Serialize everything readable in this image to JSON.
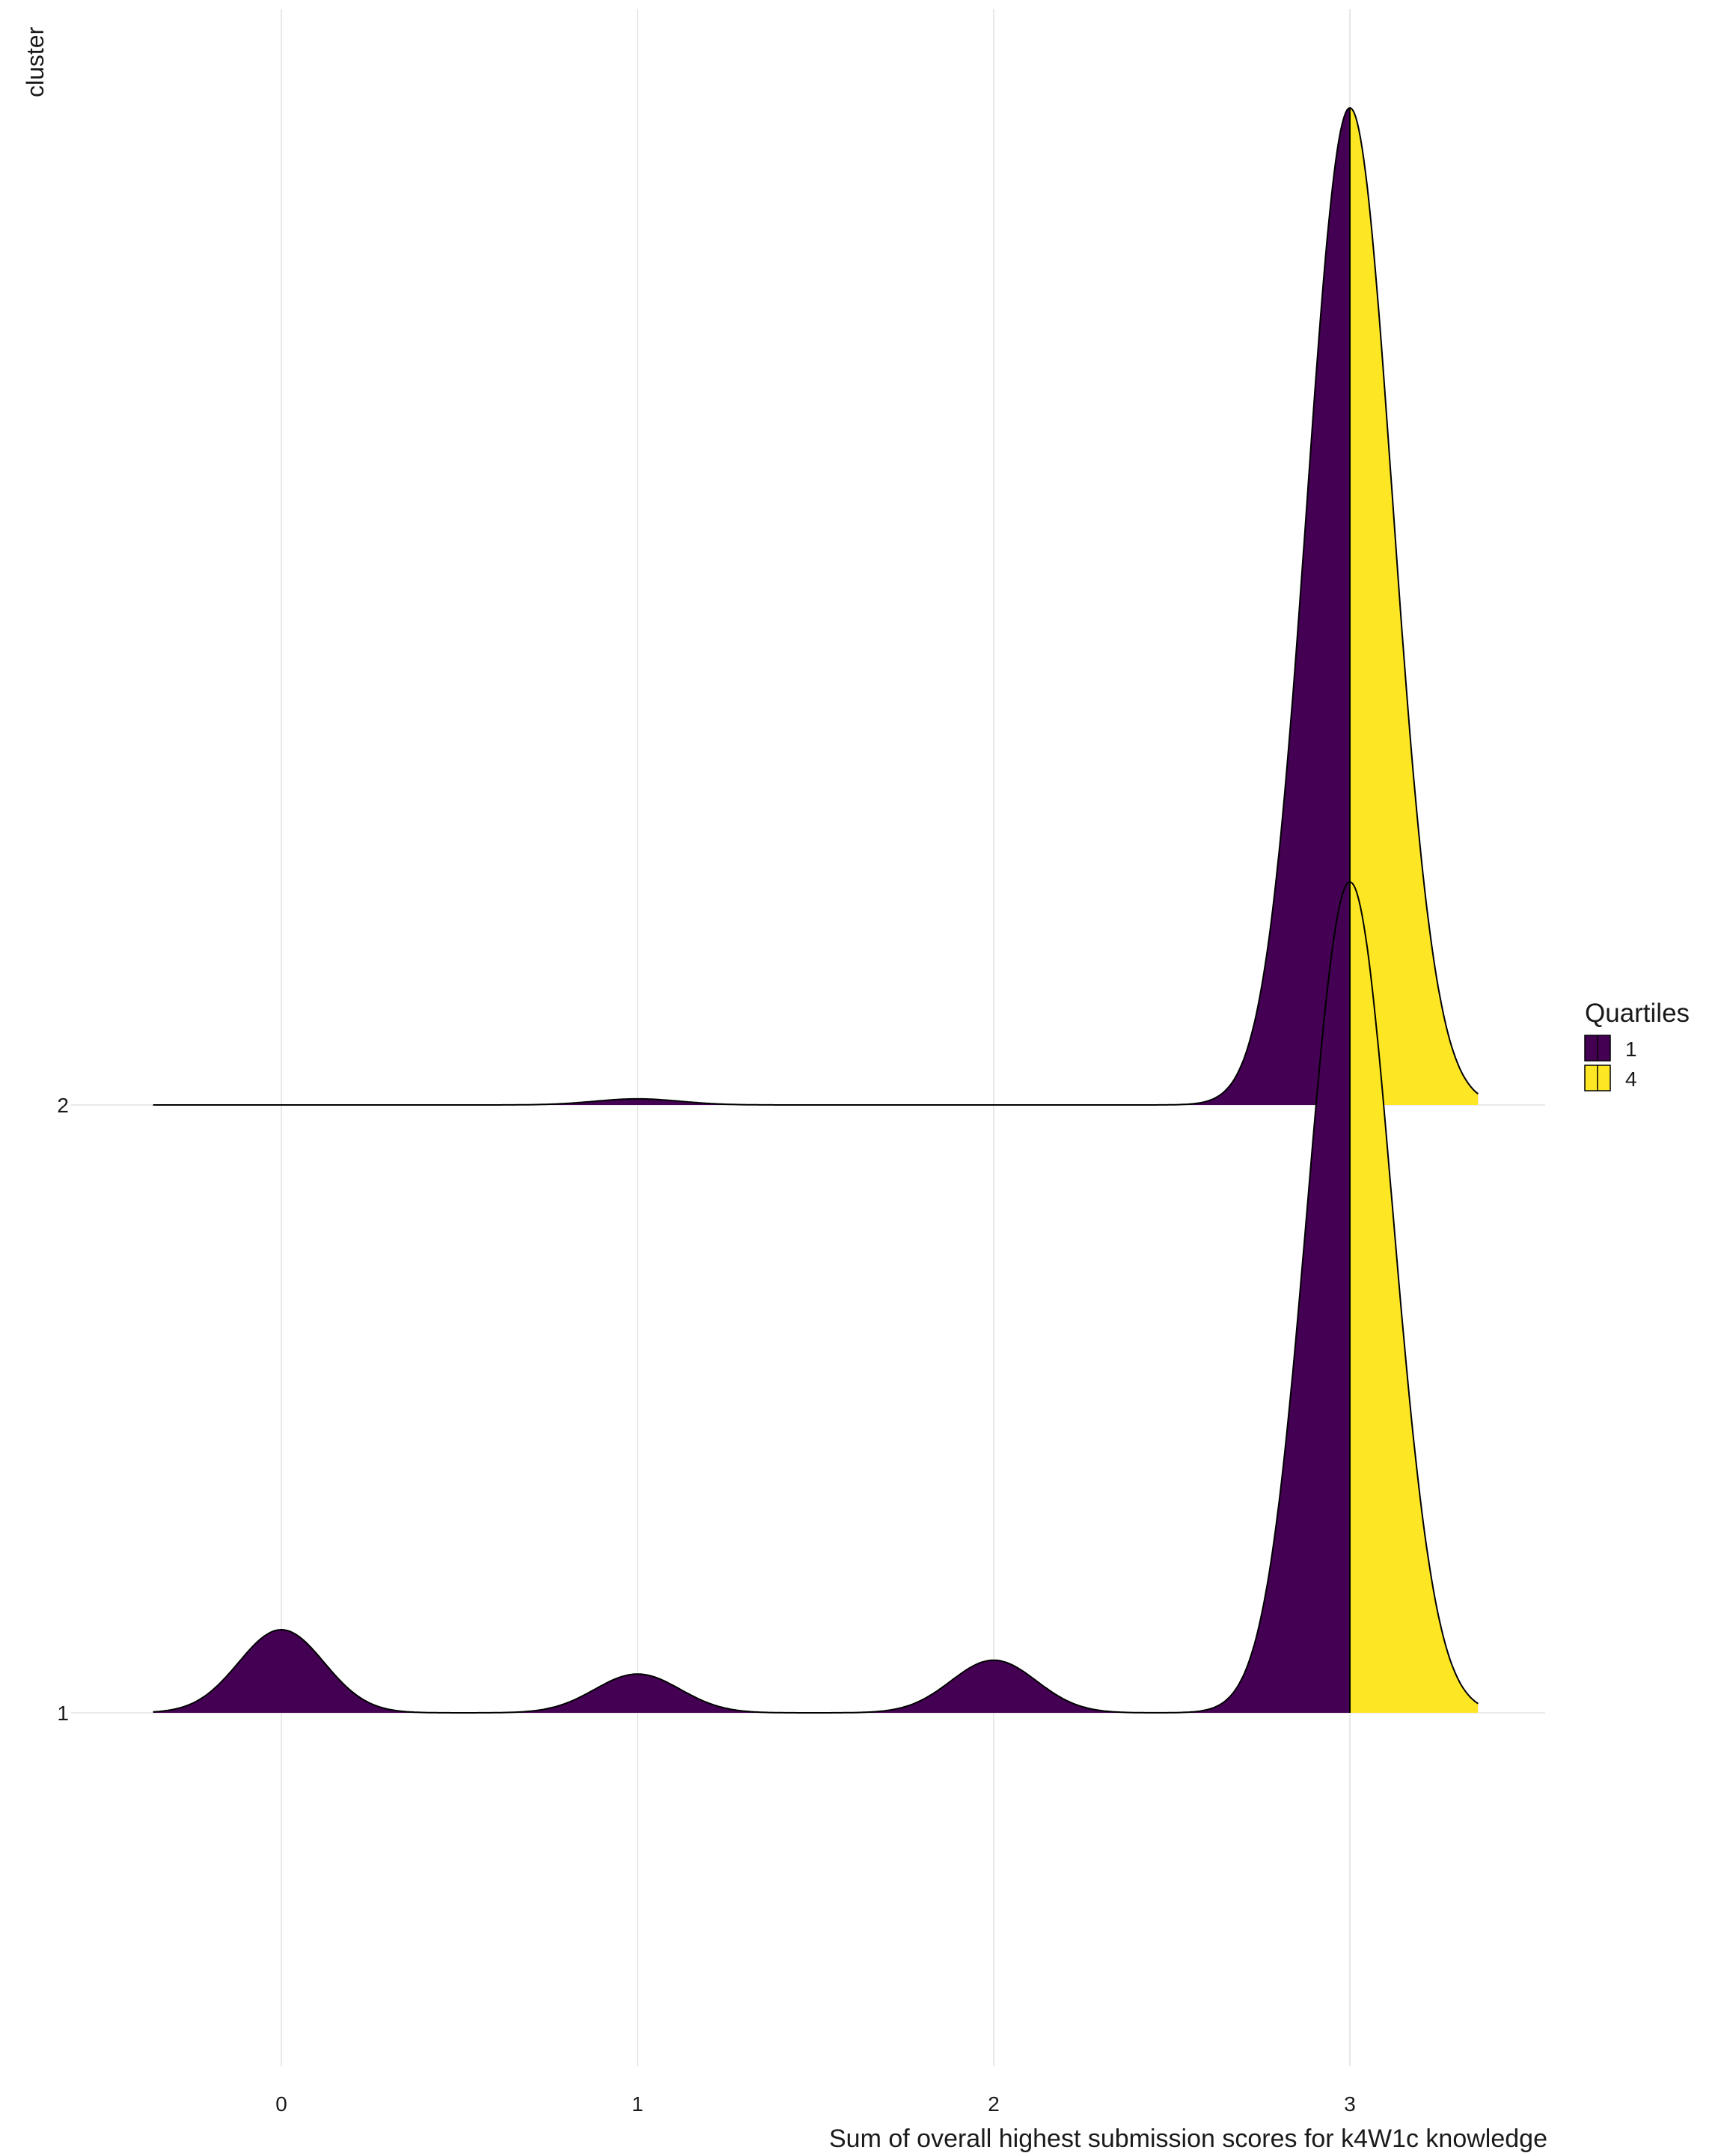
{
  "chart_data": {
    "type": "ridgeline-density",
    "xlabel": "Sum of overall highest submission scores for k4W1c knowledge",
    "ylabel": "cluster",
    "xlim": [
      -0.36,
      3.36
    ],
    "x_ticks": [
      0,
      1,
      2,
      3
    ],
    "categories": [
      "1",
      "2"
    ],
    "quantile_split_x": 3,
    "legend": {
      "title": "Quartiles",
      "placement": "right",
      "entries": [
        {
          "label": "1",
          "color": "#440154"
        },
        {
          "label": "4",
          "color": "#FDE725"
        }
      ]
    },
    "series": [
      {
        "cluster": "1",
        "bandwidth": 0.12,
        "peaks": [
          {
            "x": 0,
            "height": 0.15
          },
          {
            "x": 1,
            "height": 0.07
          },
          {
            "x": 2,
            "height": 0.095
          },
          {
            "x": 3,
            "height": 1.5
          }
        ]
      },
      {
        "cluster": "2",
        "bandwidth": 0.12,
        "peaks": [
          {
            "x": 1,
            "height": 0.011
          },
          {
            "x": 3,
            "height": 1.8
          }
        ]
      }
    ],
    "grid": "vertical-major",
    "theme": "minimal"
  }
}
